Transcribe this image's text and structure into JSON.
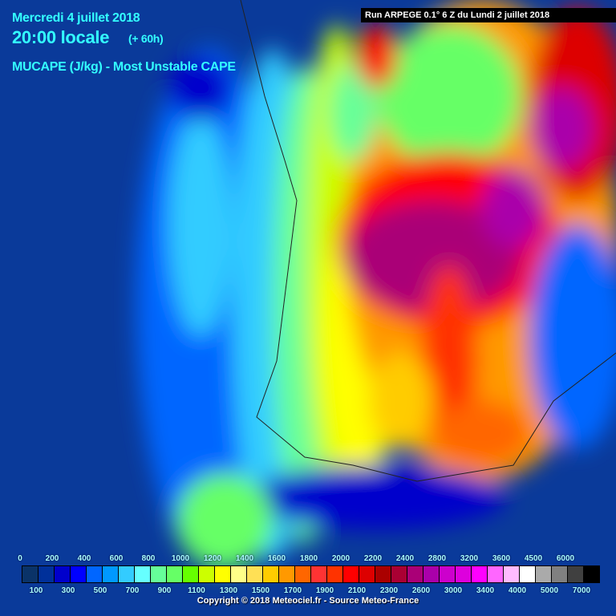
{
  "header": {
    "date": "Mercredi 4 juillet 2018",
    "time": "20:00 locale",
    "lead": "(+ 60h)",
    "parameter": "MUCAPE (J/kg) - Most Unstable CAPE",
    "run": "Run ARPEGE 0.1° 6 Z du Lundi 2 juillet 2018"
  },
  "legend": {
    "upper_labels": [
      "0",
      "200",
      "400",
      "600",
      "800",
      "1000",
      "1200",
      "1400",
      "1600",
      "1800",
      "2000",
      "2200",
      "2400",
      "2800",
      "3200",
      "3600",
      "4500",
      "6000"
    ],
    "lower_labels": [
      "100",
      "300",
      "500",
      "700",
      "900",
      "1100",
      "1300",
      "1500",
      "1700",
      "1900",
      "2100",
      "2300",
      "2600",
      "3000",
      "3400",
      "4000",
      "5000",
      "7000"
    ],
    "colors": [
      "#0a3368",
      "#00309a",
      "#0000cc",
      "#0000ff",
      "#0066ff",
      "#0099ff",
      "#33ccff",
      "#66ffff",
      "#66ff99",
      "#66ff66",
      "#66ff00",
      "#ccff00",
      "#ffff00",
      "#ffff88",
      "#ffe055",
      "#ffcc00",
      "#ff9900",
      "#ff6600",
      "#ff3333",
      "#ff3300",
      "#ff0000",
      "#dd0000",
      "#aa0000",
      "#aa0033",
      "#aa0077",
      "#aa00aa",
      "#cc00cc",
      "#dd00dd",
      "#ff00ff",
      "#ff66ff",
      "#ffbbff",
      "#ffffff",
      "#aaaaaa",
      "#808080",
      "#404040",
      "#000000"
    ]
  },
  "copyright": "Copyright © 2018 Meteociel.fr - Source Meteo-France"
}
